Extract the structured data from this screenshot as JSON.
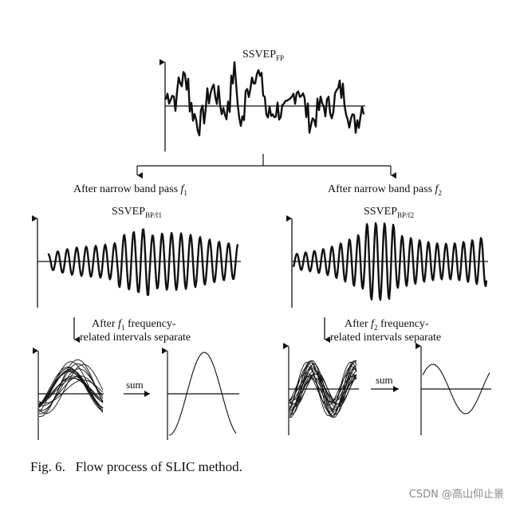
{
  "figure": {
    "top_signal": {
      "base": "SSVEP",
      "sub": "FP"
    },
    "branches": [
      {
        "filter_text": "After narrow band pass ",
        "filter_var": "f",
        "filter_sub": "1",
        "signal_base": "SSVEP",
        "signal_sub": "BP/f1",
        "separate_line1_pre": "After ",
        "separate_var": "f",
        "separate_sub": "1",
        "separate_line1_post": " frequency-",
        "separate_line2": "related intervals separate",
        "sum_label": "sum"
      },
      {
        "filter_text": "After narrow band pass ",
        "filter_var": "f",
        "filter_sub": "2",
        "signal_base": "SSVEP",
        "signal_sub": "BP/f2",
        "separate_line1_pre": "After ",
        "separate_var": "f",
        "separate_sub": "2",
        "separate_line1_post": " frequency-",
        "separate_line2": "related intervals separate",
        "sum_label": "sum"
      }
    ]
  },
  "caption": "Fig. 6.   Flow process of SLIC method.",
  "watermark": "CSDN @高山仰止景"
}
